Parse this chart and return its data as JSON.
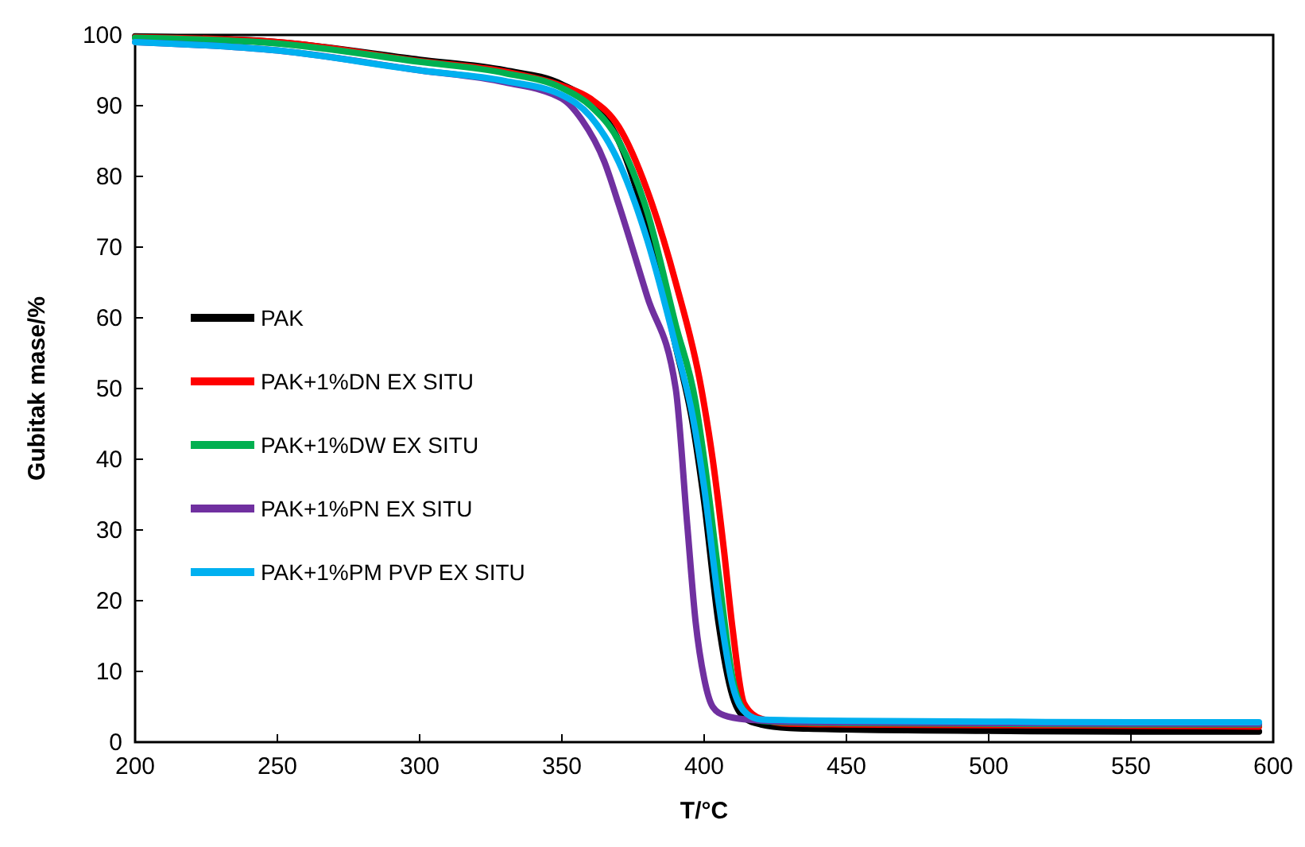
{
  "chart_data": {
    "type": "line",
    "xlabel": "T/°C",
    "ylabel": "Gubitak mase/%",
    "xlim": [
      200,
      600
    ],
    "xticks": [
      200,
      250,
      300,
      350,
      400,
      450,
      500,
      550,
      600
    ],
    "ylim": [
      0,
      100
    ],
    "yticks": [
      0,
      10,
      20,
      30,
      40,
      50,
      60,
      70,
      80,
      90,
      100
    ],
    "grid": false,
    "legend": "left",
    "marker": "none",
    "line_style": "solid",
    "series": [
      {
        "name": "PAK",
        "color": "#000000",
        "x": [
          200,
          250,
          300,
          330,
          350,
          360,
          370,
          380,
          390,
          396,
          400,
          405,
          410,
          415,
          420,
          430,
          450,
          500,
          550,
          595
        ],
        "values": [
          99.8,
          99,
          96.5,
          95,
          93,
          90.5,
          85,
          73,
          56,
          45,
          34,
          17,
          6.5,
          3.2,
          2.5,
          2,
          1.8,
          1.6,
          1.5,
          1.5
        ]
      },
      {
        "name": "PAK+1%DN EX SITU",
        "color": "#ff0000",
        "x": [
          200,
          250,
          300,
          330,
          350,
          360,
          370,
          380,
          390,
          399,
          403,
          407,
          410,
          414,
          420,
          430,
          450,
          500,
          550,
          595
        ],
        "values": [
          99.7,
          99,
          96.3,
          94.8,
          92.8,
          91,
          87,
          78,
          65,
          50,
          40,
          27,
          16,
          5.5,
          3.3,
          2.6,
          2.5,
          2.4,
          2.3,
          2.2
        ]
      },
      {
        "name": "PAK+1%DW EX SITU",
        "color": "#00b050",
        "x": [
          200,
          250,
          300,
          330,
          350,
          360,
          370,
          380,
          390,
          397,
          400,
          405,
          410,
          415,
          420,
          430,
          450,
          500,
          550,
          595
        ],
        "values": [
          99.6,
          98.8,
          96.2,
          94.6,
          92.5,
          90,
          85,
          75,
          59,
          48,
          40,
          24,
          9,
          4,
          3,
          2.8,
          2.7,
          2.6,
          2.5,
          2.5
        ]
      },
      {
        "name": "PAK+1%PN EX SITU",
        "color": "#7030a0",
        "x": [
          200,
          250,
          300,
          330,
          350,
          357,
          365,
          370,
          380,
          390,
          394,
          397,
          400,
          403,
          407,
          415,
          430,
          450,
          500,
          595
        ],
        "values": [
          99,
          97.8,
          95,
          93.3,
          91,
          88,
          82,
          76,
          63,
          50,
          31,
          17,
          9,
          5,
          3.8,
          3.2,
          2.9,
          2.8,
          2.7,
          2.6
        ]
      },
      {
        "name": "PAK+1%PM PVP EX SITU",
        "color": "#00b0f0",
        "x": [
          200,
          250,
          300,
          330,
          350,
          360,
          370,
          380,
          390,
          396,
          400,
          405,
          410,
          415,
          420,
          430,
          450,
          500,
          550,
          595
        ],
        "values": [
          99,
          97.8,
          95,
          93.5,
          91.5,
          88.5,
          82,
          71,
          56,
          46,
          36,
          20,
          8,
          4,
          3.2,
          3.1,
          3,
          2.9,
          2.8,
          2.8
        ]
      }
    ]
  }
}
